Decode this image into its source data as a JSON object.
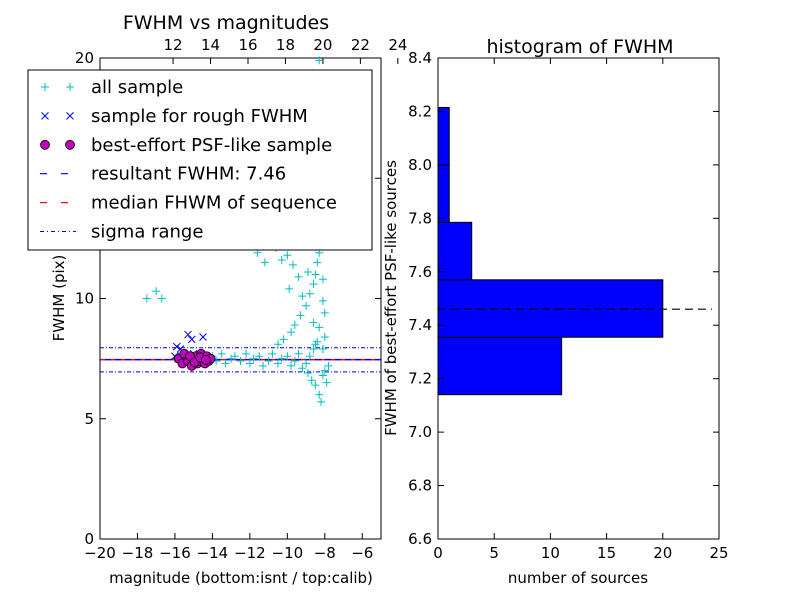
{
  "chart_data": [
    {
      "type": "scatter",
      "title": "FWHM vs magnitudes",
      "xlabel": "magnitude (bottom:isnt / top:calib)",
      "ylabel": "FWHM (pix)",
      "xlim": [
        -20,
        -5
      ],
      "ylim": [
        0,
        20
      ],
      "x_ticks": [
        -20,
        -18,
        -16,
        -14,
        -12,
        -10,
        -8,
        -6
      ],
      "x_tick_labels": [
        "−20",
        "−18",
        "−16",
        "−14",
        "−12",
        "−10",
        "−8",
        "−6"
      ],
      "y_ticks": [
        0,
        5,
        10,
        15,
        20
      ],
      "y_tick_labels": [
        "0",
        "5",
        "10",
        "15",
        "20"
      ],
      "top_axis": {
        "offset": 28.1,
        "ticks": [
          12,
          14,
          16,
          18,
          20,
          22,
          24
        ],
        "tick_labels": [
          "12",
          "14",
          "16",
          "18",
          "20",
          "22",
          "24"
        ]
      },
      "legend": {
        "position": "upper-left",
        "entries": [
          {
            "label": "all sample",
            "marker": "plus",
            "color": "#00bfbf"
          },
          {
            "label": "sample for rough FWHM",
            "marker": "x",
            "color": "#0000ff"
          },
          {
            "label": "best-effort PSF-like sample",
            "marker": "circle",
            "color": "#bf00bf"
          },
          {
            "label": "resultant FWHM: 7.46",
            "line": "dashed",
            "color": "#0000ff"
          },
          {
            "label": "median FHWM of sequence",
            "line": "dashed",
            "color": "#ff0000"
          },
          {
            "label": "sigma range",
            "line": "dashdot",
            "color": "#0000ff"
          }
        ]
      },
      "hlines": {
        "resultant_fwhm": 7.46,
        "median_fwhm": 7.46,
        "sigma_range": [
          6.95,
          7.95
        ]
      },
      "series": [
        {
          "name": "all sample",
          "marker": "plus",
          "color": "#00bfbf",
          "points": [
            [
              -17.5,
              10.0
            ],
            [
              -17.0,
              10.3
            ],
            [
              -16.7,
              10.0
            ],
            [
              -16.0,
              7.5
            ],
            [
              -15.8,
              7.6
            ],
            [
              -15.5,
              7.4
            ],
            [
              -15.2,
              7.6
            ],
            [
              -15.0,
              7.5
            ],
            [
              -14.8,
              7.3
            ],
            [
              -14.5,
              7.4
            ],
            [
              -14.2,
              7.5
            ],
            [
              -14.0,
              7.6
            ],
            [
              -13.8,
              7.4
            ],
            [
              -13.5,
              7.7
            ],
            [
              -13.3,
              7.3
            ],
            [
              -13.0,
              7.5
            ],
            [
              -12.8,
              7.6
            ],
            [
              -12.5,
              7.4
            ],
            [
              -12.2,
              7.7
            ],
            [
              -12.0,
              7.3
            ],
            [
              -11.8,
              7.5
            ],
            [
              -11.5,
              7.6
            ],
            [
              -11.3,
              7.2
            ],
            [
              -11.0,
              7.4
            ],
            [
              -10.8,
              7.7
            ],
            [
              -10.5,
              7.3
            ],
            [
              -10.3,
              7.5
            ],
            [
              -10.0,
              7.6
            ],
            [
              -9.8,
              7.2
            ],
            [
              -9.6,
              7.4
            ],
            [
              -9.4,
              7.7
            ],
            [
              -9.2,
              7.1
            ],
            [
              -9.0,
              7.3
            ],
            [
              -8.9,
              6.9
            ],
            [
              -8.8,
              7.6
            ],
            [
              -8.7,
              6.6
            ],
            [
              -8.6,
              7.9
            ],
            [
              -8.5,
              6.4
            ],
            [
              -8.4,
              8.2
            ],
            [
              -8.3,
              6.0
            ],
            [
              -8.2,
              5.7
            ],
            [
              -8.1,
              6.8
            ],
            [
              -8.0,
              7.0
            ],
            [
              -7.9,
              6.5
            ],
            [
              -7.8,
              7.2
            ],
            [
              -10.5,
              8.1
            ],
            [
              -10.2,
              8.3
            ],
            [
              -9.8,
              8.6
            ],
            [
              -9.6,
              8.9
            ],
            [
              -9.3,
              9.3
            ],
            [
              -9.0,
              9.7
            ],
            [
              -8.8,
              10.2
            ],
            [
              -8.6,
              10.6
            ],
            [
              -8.5,
              11.0
            ],
            [
              -8.4,
              11.5
            ],
            [
              -8.3,
              11.9
            ],
            [
              -8.2,
              12.2
            ],
            [
              -8.1,
              10.8
            ],
            [
              -8.0,
              9.4
            ],
            [
              -8.0,
              8.4
            ],
            [
              -8.1,
              7.9
            ],
            [
              -8.6,
              9.0
            ],
            [
              -8.9,
              11.1
            ],
            [
              -9.4,
              10.9
            ],
            [
              -9.7,
              11.4
            ],
            [
              -10.0,
              11.8
            ],
            [
              -10.3,
              11.6
            ],
            [
              -10.6,
              12.1
            ],
            [
              -11.2,
              11.5
            ],
            [
              -11.6,
              11.9
            ],
            [
              -9.9,
              10.4
            ],
            [
              -9.2,
              10.1
            ],
            [
              -8.7,
              12.6
            ],
            [
              -8.4,
              12.8
            ],
            [
              -8.2,
              13.0
            ],
            [
              -8.3,
              8.8
            ],
            [
              -8.5,
              8.1
            ],
            [
              -8.1,
              9.9
            ],
            [
              -8.3,
              19.9
            ]
          ]
        },
        {
          "name": "sample for rough FWHM",
          "marker": "x",
          "color": "#0000ff",
          "points": [
            [
              -15.9,
              8.0
            ],
            [
              -15.7,
              7.9
            ],
            [
              -15.3,
              8.5
            ],
            [
              -15.1,
              8.3
            ],
            [
              -14.5,
              8.4
            ],
            [
              -16.0,
              7.6
            ],
            [
              -15.5,
              7.5
            ],
            [
              -15.0,
              7.7
            ],
            [
              -14.7,
              7.4
            ],
            [
              -14.3,
              7.6
            ],
            [
              -15.6,
              7.3
            ]
          ]
        },
        {
          "name": "best-effort PSF-like sample",
          "marker": "circle",
          "color": "#bf00bf",
          "points": [
            [
              -15.8,
              7.5
            ],
            [
              -15.6,
              7.3
            ],
            [
              -15.4,
              7.6
            ],
            [
              -15.3,
              7.4
            ],
            [
              -15.1,
              7.2
            ],
            [
              -15.0,
              7.5
            ],
            [
              -14.9,
              7.6
            ],
            [
              -14.8,
              7.3
            ],
            [
              -14.7,
              7.4
            ],
            [
              -14.6,
              7.7
            ],
            [
              -14.5,
              7.5
            ],
            [
              -14.4,
              7.3
            ],
            [
              -14.3,
              7.6
            ],
            [
              -14.2,
              7.4
            ],
            [
              -14.1,
              7.5
            ],
            [
              -15.5,
              7.7
            ],
            [
              -15.2,
              7.6
            ],
            [
              -14.95,
              7.35
            ],
            [
              -14.65,
              7.55
            ],
            [
              -14.35,
              7.45
            ]
          ]
        }
      ]
    },
    {
      "type": "bar",
      "orientation": "horizontal",
      "title": "histogram of FWHM",
      "xlabel": "number of sources",
      "ylabel": "FWHM of best-effort PSF-like sources",
      "xlim": [
        0,
        25
      ],
      "ylim": [
        6.6,
        8.4
      ],
      "x_ticks": [
        0,
        5,
        10,
        15,
        20,
        25
      ],
      "x_tick_labels": [
        "0",
        "5",
        "10",
        "15",
        "20",
        "25"
      ],
      "y_ticks": [
        6.6,
        6.8,
        7.0,
        7.2,
        7.4,
        7.6,
        7.8,
        8.0,
        8.2,
        8.4
      ],
      "y_tick_labels": [
        "6.6",
        "6.8",
        "7.0",
        "7.2",
        "7.4",
        "7.6",
        "7.8",
        "8.0",
        "8.2",
        "8.4"
      ],
      "bar_color": "#0000ff",
      "bins": [
        {
          "from": 7.14,
          "to": 7.355,
          "count": 11
        },
        {
          "from": 7.355,
          "to": 7.57,
          "count": 20
        },
        {
          "from": 7.57,
          "to": 7.785,
          "count": 3
        },
        {
          "from": 7.785,
          "to": 8.0,
          "count": 1
        },
        {
          "from": 8.0,
          "to": 8.215,
          "count": 1
        }
      ],
      "hline": 7.46
    }
  ]
}
